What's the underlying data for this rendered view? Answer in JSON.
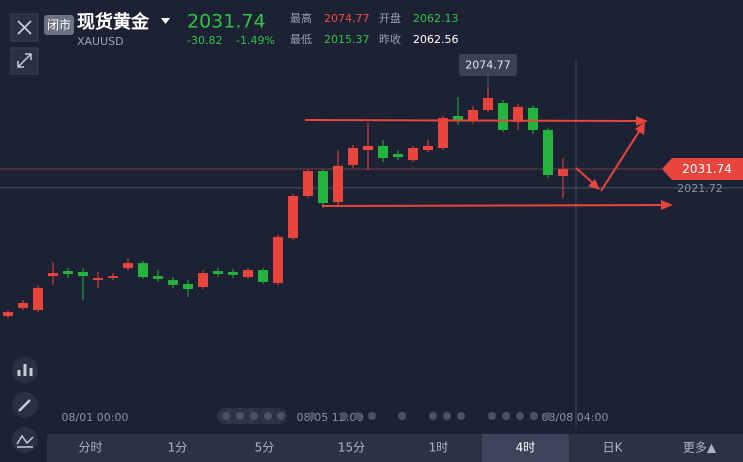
{
  "header": {
    "status": "闭市",
    "name": "现货黄金",
    "symbol": "XAUUSD",
    "price": "2031.74",
    "change": "-30.82",
    "change_pct": "-1.49%",
    "stats": [
      {
        "label": "最高",
        "value": "2074.77"
      },
      {
        "label": "开盘",
        "value": "2062.13"
      },
      {
        "label": "最低",
        "value": "2015.37"
      },
      {
        "label": "昨收",
        "value": "2062.56"
      }
    ]
  },
  "chart_data": {
    "type": "candlestick",
    "up_color": "#e8453c",
    "down_color": "#22b43c",
    "ylim": [
      1909.1,
      2121.5
    ],
    "x_labels": [
      "08/01 00:00",
      "08/05 12:00",
      "08/08 04:00"
    ],
    "open": [
      1953.7,
      1958.0,
      1956.9,
      1974.9,
      1977.6,
      1977.1,
      1972.8,
      1973.9,
      1979.2,
      1981.8,
      1974.9,
      1972.8,
      1970.7,
      1969.1,
      1977.6,
      1977.1,
      1974.4,
      1978.1,
      1971.2,
      1995.1,
      2017.4,
      2030.7,
      2014.2,
      2033.9,
      2041.8,
      2044.0,
      2039.7,
      2036.5,
      2041.8,
      2042.9,
      2059.9,
      2057.2,
      2063.1,
      2066.8,
      2056.7,
      2064.2,
      2052.5,
      2028.0
    ],
    "high": [
      1956.9,
      1962.2,
      1970.2,
      1982.4,
      1979.2,
      1979.2,
      1977.1,
      1976.5,
      1984.5,
      1982.9,
      1978.1,
      1974.4,
      1972.8,
      1978.1,
      1979.2,
      1978.7,
      1979.2,
      1979.2,
      1996.7,
      2018.5,
      2031.7,
      2031.7,
      2041.8,
      2044.5,
      2056.2,
      2047.2,
      2041.8,
      2044.0,
      2047.2,
      2059.9,
      2070.0,
      2065.2,
      2074.77,
      2068.4,
      2066.3,
      2065.7,
      2053.5,
      2037.6
    ],
    "low": [
      1952.6,
      1956.9,
      1955.8,
      1970.2,
      1973.9,
      1962.2,
      1968.6,
      1972.8,
      1978.1,
      1973.4,
      1971.8,
      1968.6,
      1963.8,
      1968.0,
      1974.4,
      1973.9,
      1973.4,
      1970.7,
      1970.2,
      1994.1,
      2016.4,
      2011.1,
      2012.1,
      2032.3,
      2031.2,
      2035.5,
      2036.5,
      2035.5,
      2040.8,
      2041.8,
      2055.1,
      2055.7,
      2062.0,
      2051.4,
      2052.5,
      2050.3,
      2027.0,
      2016.4
    ],
    "close": [
      1955.8,
      1960.6,
      1968.6,
      1976.5,
      1976.0,
      1974.9,
      1973.9,
      1974.9,
      1981.8,
      1974.4,
      1973.4,
      1970.2,
      1968.0,
      1976.5,
      1976.0,
      1975.5,
      1978.1,
      1971.8,
      1995.7,
      2017.4,
      2030.7,
      2013.7,
      2033.4,
      2042.9,
      2044.0,
      2037.6,
      2038.1,
      2042.9,
      2044.0,
      2058.8,
      2057.8,
      2063.1,
      2069.5,
      2052.5,
      2064.7,
      2052.5,
      2028.6,
      2031.74
    ],
    "max_label": 2074.77,
    "last_price": 2031.74,
    "crosshair_price": 2021.72
  },
  "tabs": [
    "分时",
    "1分",
    "5分",
    "15分",
    "1时",
    "4时",
    "日K",
    "更多▲"
  ]
}
